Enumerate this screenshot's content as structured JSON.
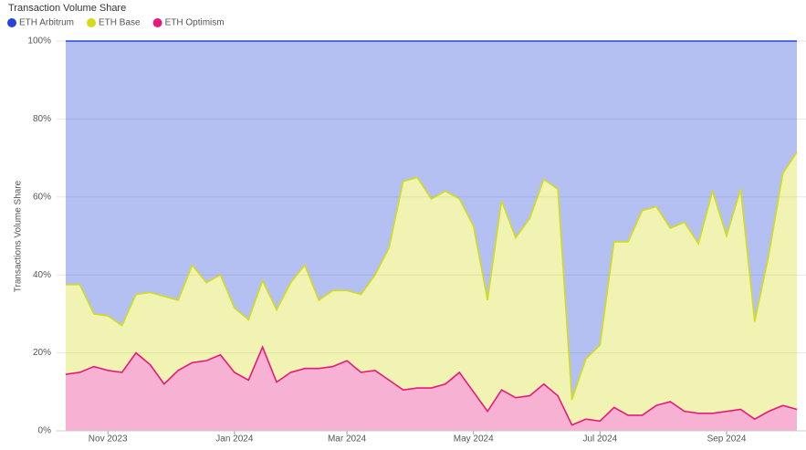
{
  "chart_data": {
    "type": "stacked_area_percent",
    "title": "Transaction Volume Share",
    "y_label": "Transactions Volume Share",
    "categories": [
      null,
      null,
      null,
      "Nov 2023",
      null,
      null,
      null,
      null,
      null,
      null,
      null,
      null,
      "Jan 2024",
      null,
      null,
      null,
      null,
      null,
      null,
      null,
      "Mar 2024",
      null,
      null,
      null,
      null,
      null,
      null,
      null,
      null,
      "May 2024",
      null,
      null,
      null,
      null,
      null,
      null,
      null,
      null,
      "Jul 2024",
      null,
      null,
      null,
      null,
      null,
      null,
      null,
      null,
      "Sep 2024",
      null,
      null,
      null,
      null,
      null
    ],
    "series": [
      {
        "name": "ETH Arbitrum",
        "color": "#2545d8",
        "values": [
          62.5,
          62.5,
          70,
          70.5,
          73,
          65,
          64.5,
          65.5,
          66.5,
          57.5,
          62,
          60,
          68.5,
          71.5,
          61.5,
          69,
          62,
          57.5,
          66.5,
          64,
          64,
          65,
          60,
          53,
          36,
          35,
          40.5,
          38.5,
          40.5,
          47.5,
          66.5,
          41,
          50.5,
          45.5,
          35.5,
          38,
          92,
          81.5,
          78,
          51.5,
          51.5,
          43.5,
          42.5,
          48,
          46.5,
          52,
          38.5,
          50,
          38,
          72,
          55,
          34,
          28.5
        ]
      },
      {
        "name": "ETH Base",
        "color": "#d4dc1a",
        "values": [
          23,
          22.5,
          13.5,
          14,
          12,
          15,
          18.5,
          22.5,
          18,
          25,
          20,
          20.5,
          16.5,
          15.5,
          17,
          18.5,
          23,
          26.5,
          17.5,
          19.5,
          18,
          20,
          24.5,
          34,
          53.5,
          54,
          48.5,
          49.5,
          44.5,
          42.5,
          28.5,
          48.5,
          41,
          45.5,
          52.5,
          53,
          6.5,
          15.5,
          19.5,
          42.5,
          44.5,
          52.5,
          51,
          44.5,
          48.5,
          43.5,
          57,
          45,
          56.5,
          25,
          40,
          59.5,
          66
        ]
      },
      {
        "name": "ETH Optimism",
        "color": "#e8197c",
        "values": [
          14.5,
          15,
          16.5,
          15.5,
          15,
          20,
          17,
          12,
          15.5,
          17.5,
          18,
          19.5,
          15,
          13,
          21.5,
          12.5,
          15,
          16,
          16,
          16.5,
          18,
          15,
          15.5,
          13,
          10.5,
          11,
          11,
          12,
          15,
          10,
          5,
          10.5,
          8.5,
          9,
          12,
          9,
          1.5,
          3,
          2.5,
          6,
          4,
          4,
          6.5,
          7.5,
          5,
          4.5,
          4.5,
          5,
          5.5,
          3,
          5,
          6.5,
          5.5
        ]
      }
    ],
    "ylim": [
      0,
      100
    ],
    "yticks": [
      {
        "value": 0,
        "label": "0%"
      },
      {
        "value": 20,
        "label": "20%"
      },
      {
        "value": 40,
        "label": "40%"
      },
      {
        "value": 60,
        "label": "60%"
      },
      {
        "value": 80,
        "label": "80%"
      },
      {
        "value": 100,
        "label": "100%"
      }
    ],
    "grid": true,
    "legend": "top-left"
  }
}
